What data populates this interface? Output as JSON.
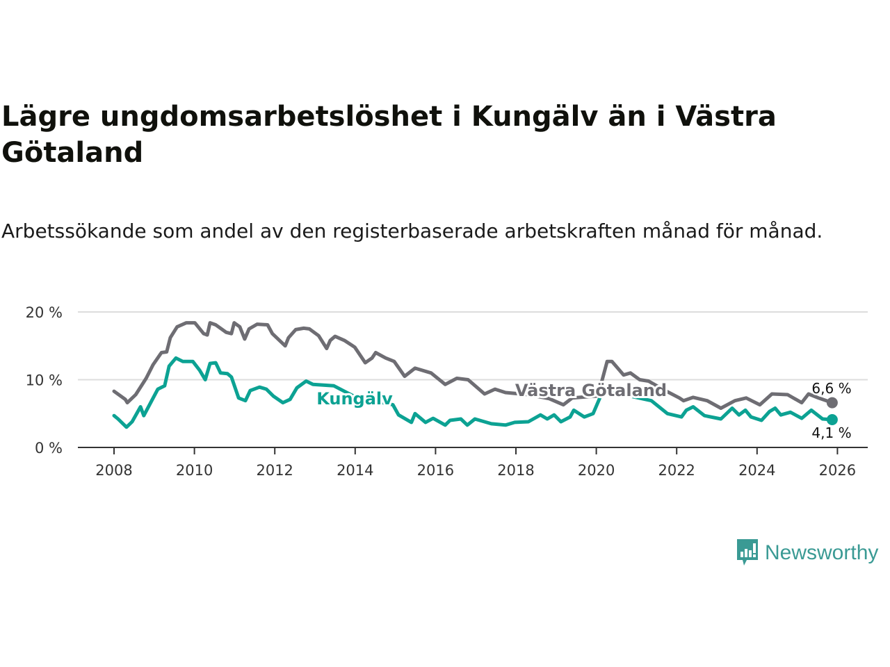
{
  "header": {
    "title": "Lägre ungdomsarbetslöshet i Kungälv än i Västra Götaland",
    "subtitle": "Arbetssökande som andel av den registerbaserade arbetskraften månad för månad."
  },
  "logo": {
    "text": "Newsworthy",
    "icon": "newsworthy-chart-bubble-icon"
  },
  "colors": {
    "vastra": "#6e6d73",
    "kungalv": "#0ca293",
    "grid": "#dddddd",
    "axis": "#333333",
    "logo": "#3a9a94"
  },
  "chart_data": {
    "type": "line",
    "title": "Lägre ungdomsarbetslöshet i Kungälv än i Västra Götaland",
    "xlabel": "",
    "ylabel": "",
    "xlim": [
      2007.1,
      2026.8
    ],
    "ylim": [
      0,
      20
    ],
    "grid": true,
    "x_ticks": [
      {
        "value": 2008,
        "label": "2008"
      },
      {
        "value": 2010,
        "label": "2010"
      },
      {
        "value": 2012,
        "label": "2012"
      },
      {
        "value": 2014,
        "label": "2014"
      },
      {
        "value": 2016,
        "label": "2016"
      },
      {
        "value": 2018,
        "label": "2018"
      },
      {
        "value": 2020,
        "label": "2020"
      },
      {
        "value": 2022,
        "label": "2022"
      },
      {
        "value": 2024,
        "label": "2024"
      },
      {
        "value": 2026,
        "label": "2026"
      }
    ],
    "y_ticks": [
      {
        "value": 0,
        "label": "0 %"
      },
      {
        "value": 10,
        "label": "10 %"
      },
      {
        "value": 20,
        "label": "20 %"
      }
    ],
    "series": [
      {
        "name": "Västra Götaland",
        "end_label": "6,6 %",
        "x": [
          2008.0,
          2008.28,
          2008.33,
          2008.54,
          2008.8,
          2008.97,
          2009.18,
          2009.31,
          2009.4,
          2009.57,
          2009.8,
          2010.01,
          2010.23,
          2010.32,
          2010.39,
          2010.53,
          2010.79,
          2010.92,
          2010.99,
          2011.13,
          2011.25,
          2011.36,
          2011.56,
          2011.82,
          2011.94,
          2012.26,
          2012.34,
          2012.52,
          2012.72,
          2012.86,
          2013.09,
          2013.29,
          2013.38,
          2013.5,
          2013.73,
          2013.99,
          2014.25,
          2014.42,
          2014.51,
          2014.76,
          2014.97,
          2015.23,
          2015.49,
          2015.89,
          2016.24,
          2016.53,
          2016.81,
          2017.22,
          2017.48,
          2017.74,
          2018.31,
          2018.83,
          2019.18,
          2019.4,
          2020.04,
          2020.27,
          2020.39,
          2020.68,
          2020.85,
          2021.08,
          2021.3,
          2021.68,
          2022.07,
          2022.17,
          2022.41,
          2022.76,
          2023.1,
          2023.45,
          2023.73,
          2024.07,
          2024.37,
          2024.76,
          2025.11,
          2025.28,
          2025.53,
          2025.87
        ],
        "y": [
          8.3,
          7.1,
          6.6,
          7.8,
          10.2,
          12.2,
          14.0,
          14.1,
          16.2,
          17.8,
          18.4,
          18.4,
          16.8,
          16.6,
          18.4,
          18.1,
          17.0,
          16.8,
          18.4,
          17.8,
          16.0,
          17.5,
          18.2,
          18.1,
          16.8,
          15.0,
          16.2,
          17.4,
          17.6,
          17.5,
          16.5,
          14.6,
          15.8,
          16.4,
          15.8,
          14.8,
          12.5,
          13.2,
          14.0,
          13.2,
          12.7,
          10.5,
          11.7,
          11.0,
          9.3,
          10.2,
          10.0,
          7.9,
          8.6,
          8.1,
          7.8,
          7.2,
          6.3,
          7.3,
          7.6,
          12.7,
          12.7,
          10.7,
          11.0,
          10.0,
          9.8,
          8.5,
          7.3,
          6.9,
          7.4,
          6.9,
          5.8,
          6.9,
          7.3,
          6.3,
          7.9,
          7.8,
          6.6,
          7.9,
          7.3,
          6.6
        ]
      },
      {
        "name": "Kungälv",
        "end_label": "4,1 %",
        "x": [
          2008.0,
          2008.1,
          2008.31,
          2008.45,
          2008.66,
          2008.74,
          2009.09,
          2009.26,
          2009.37,
          2009.54,
          2009.71,
          2009.96,
          2010.13,
          2010.27,
          2010.39,
          2010.53,
          2010.65,
          2010.82,
          2010.92,
          2011.1,
          2011.27,
          2011.39,
          2011.62,
          2011.79,
          2011.96,
          2012.2,
          2012.38,
          2012.55,
          2012.78,
          2012.95,
          2013.47,
          2013.99,
          2014.51,
          2014.94,
          2015.08,
          2015.4,
          2015.49,
          2015.75,
          2015.94,
          2016.24,
          2016.36,
          2016.63,
          2016.79,
          2016.98,
          2017.39,
          2017.74,
          2017.97,
          2018.31,
          2018.61,
          2018.78,
          2018.95,
          2019.12,
          2019.35,
          2019.44,
          2019.7,
          2019.92,
          2020.16,
          2020.56,
          2020.91,
          2021.37,
          2021.77,
          2022.12,
          2022.24,
          2022.41,
          2022.69,
          2023.1,
          2023.38,
          2023.55,
          2023.71,
          2023.85,
          2024.11,
          2024.31,
          2024.45,
          2024.59,
          2024.83,
          2025.11,
          2025.35,
          2025.63,
          2025.87
        ],
        "y": [
          4.7,
          4.2,
          3.0,
          3.8,
          6.0,
          4.7,
          8.6,
          9.1,
          12.0,
          13.2,
          12.7,
          12.7,
          11.4,
          10.0,
          12.4,
          12.5,
          11.0,
          10.9,
          10.4,
          7.3,
          6.9,
          8.4,
          8.9,
          8.6,
          7.6,
          6.6,
          7.1,
          8.8,
          9.8,
          9.3,
          9.1,
          7.5,
          6.8,
          6.3,
          4.8,
          3.7,
          5.0,
          3.7,
          4.3,
          3.3,
          4.0,
          4.2,
          3.3,
          4.2,
          3.5,
          3.3,
          3.7,
          3.8,
          4.8,
          4.2,
          4.8,
          3.8,
          4.5,
          5.5,
          4.5,
          5.0,
          8.3,
          8.0,
          7.5,
          6.9,
          5.0,
          4.5,
          5.5,
          6.0,
          4.7,
          4.2,
          5.8,
          4.8,
          5.5,
          4.5,
          4.0,
          5.3,
          5.8,
          4.8,
          5.2,
          4.3,
          5.5,
          4.2,
          4.1
        ]
      }
    ]
  }
}
